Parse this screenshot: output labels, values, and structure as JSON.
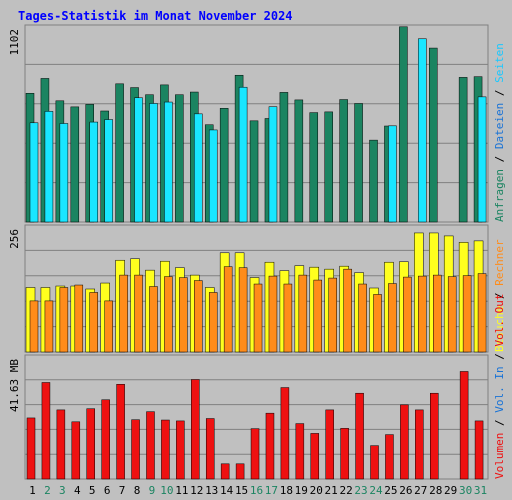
{
  "header": {
    "title": "Tages-Statistik im Monat November 2024"
  },
  "colors": {
    "background": "#c0c0c0",
    "title": "#0000ff",
    "frame": "#808080",
    "grid": "#808080",
    "anfragen": "#1b8461",
    "dateien": "#19e6ff",
    "seiten": "#1a3a87",
    "besuche": "#ffff1e",
    "rechner": "#ff8c1a",
    "volumen": "#ee1111",
    "weekday_label": "#000000",
    "weekend_label": "#1b8461"
  },
  "chart_data": [
    {
      "type": "bar",
      "name": "top",
      "ylim": [
        0,
        1102
      ],
      "max_label": "1102",
      "grid": true,
      "right_labels": [
        {
          "text": "Anfragen",
          "color": "#1b8461"
        },
        {
          "text": " / ",
          "color": "#000000"
        },
        {
          "text": "Dateien",
          "color": "#1973d6"
        },
        {
          "text": " / ",
          "color": "#000000"
        },
        {
          "text": "Seiten",
          "color": "#19c8ff"
        }
      ],
      "categories": [
        "1",
        "2",
        "3",
        "4",
        "5",
        "6",
        "7",
        "8",
        "9",
        "10",
        "11",
        "12",
        "13",
        "14",
        "15",
        "16",
        "17",
        "18",
        "19",
        "20",
        "21",
        "22",
        "23",
        "24",
        "25",
        "26",
        "27",
        "28",
        "29",
        "30",
        "31"
      ],
      "series": [
        {
          "key": "anfragen",
          "values": [
            720,
            803,
            678,
            644,
            658,
            621,
            773,
            752,
            712,
            767,
            712,
            727,
            544,
            636,
            821,
            566,
            579,
            725,
            683,
            612,
            616,
            685,
            663,
            458,
            537,
            1092,
            0,
            973,
            0,
            809,
            813
          ]
        },
        {
          "key": "dateien",
          "values": [
            555,
            619,
            551,
            0,
            559,
            573,
            0,
            695,
            663,
            671,
            0,
            605,
            515,
            0,
            754,
            0,
            645,
            0,
            0,
            0,
            0,
            0,
            0,
            0,
            538,
            0,
            1025,
            0,
            0,
            0,
            700
          ]
        },
        {
          "key": "seiten",
          "values": [
            0,
            0,
            0,
            0,
            0,
            0,
            0,
            0,
            0,
            0,
            0,
            0,
            0,
            0,
            0,
            0,
            0,
            0,
            0,
            0,
            0,
            0,
            0,
            0,
            0,
            0,
            0,
            0,
            0,
            0,
            0
          ]
        }
      ]
    },
    {
      "type": "bar",
      "name": "middle",
      "ylim": [
        0,
        256
      ],
      "max_label": "256",
      "grid": true,
      "right_labels": [
        {
          "text": "Besuche",
          "color": "#ffff1e"
        },
        {
          "text": " / ",
          "color": "#000000"
        },
        {
          "text": "Rechner",
          "color": "#ff8c1a"
        }
      ],
      "categories": [
        "1",
        "2",
        "3",
        "4",
        "5",
        "6",
        "7",
        "8",
        "9",
        "10",
        "11",
        "12",
        "13",
        "14",
        "15",
        "16",
        "17",
        "18",
        "19",
        "20",
        "21",
        "22",
        "23",
        "24",
        "25",
        "26",
        "27",
        "28",
        "29",
        "30",
        "31"
      ],
      "series": [
        {
          "key": "besuche",
          "values": [
            130,
            130,
            133,
            133,
            127,
            139,
            185,
            188,
            165,
            183,
            170,
            155,
            130,
            200,
            200,
            150,
            181,
            164,
            174,
            171,
            167,
            173,
            160,
            129,
            181,
            182,
            240,
            240,
            234,
            221,
            224
          ]
        },
        {
          "key": "rechner",
          "values": [
            103,
            103,
            130,
            135,
            120,
            103,
            155,
            155,
            132,
            152,
            150,
            144,
            120,
            172,
            170,
            137,
            153,
            137,
            155,
            145,
            149,
            167,
            137,
            116,
            138,
            151,
            153,
            155,
            152,
            154,
            158
          ]
        }
      ]
    },
    {
      "type": "bar",
      "name": "bottom",
      "ylim": [
        0,
        41.63
      ],
      "max_label": "41.63 MB",
      "grid": true,
      "right_labels": [
        {
          "text": "Volumen",
          "color": "#ee1111"
        },
        {
          "text": " / ",
          "color": "#000000"
        },
        {
          "text": "Vol. In",
          "color": "#1973d6"
        },
        {
          "text": " / ",
          "color": "#000000"
        },
        {
          "text": "Vol. Out",
          "color": "#ee1111"
        }
      ],
      "categories": [
        "1",
        "2",
        "3",
        "4",
        "5",
        "6",
        "7",
        "8",
        "9",
        "10",
        "11",
        "12",
        "13",
        "14",
        "15",
        "16",
        "17",
        "18",
        "19",
        "20",
        "21",
        "22",
        "23",
        "24",
        "25",
        "26",
        "27",
        "28",
        "29",
        "30",
        "31"
      ],
      "series": [
        {
          "key": "volumen",
          "values": [
            20.5,
            32.4,
            23.2,
            19.2,
            23.6,
            26.6,
            31.8,
            19.9,
            22.6,
            19.8,
            19.5,
            33.4,
            20.3,
            5.1,
            5.1,
            16.9,
            22.1,
            30.7,
            18.6,
            15.3,
            23.2,
            17.0,
            28.8,
            11.2,
            14.9,
            24.9,
            23.2,
            28.8,
            0,
            36.1,
            19.5
          ]
        }
      ]
    }
  ],
  "x_axis": {
    "days": [
      "1",
      "2",
      "3",
      "4",
      "5",
      "6",
      "7",
      "8",
      "9",
      "10",
      "11",
      "12",
      "13",
      "14",
      "15",
      "16",
      "17",
      "18",
      "19",
      "20",
      "21",
      "22",
      "23",
      "24",
      "25",
      "26",
      "27",
      "28",
      "29",
      "30",
      "31"
    ],
    "weekend": [
      2,
      3,
      9,
      10,
      16,
      17,
      23,
      24,
      30,
      31
    ]
  }
}
